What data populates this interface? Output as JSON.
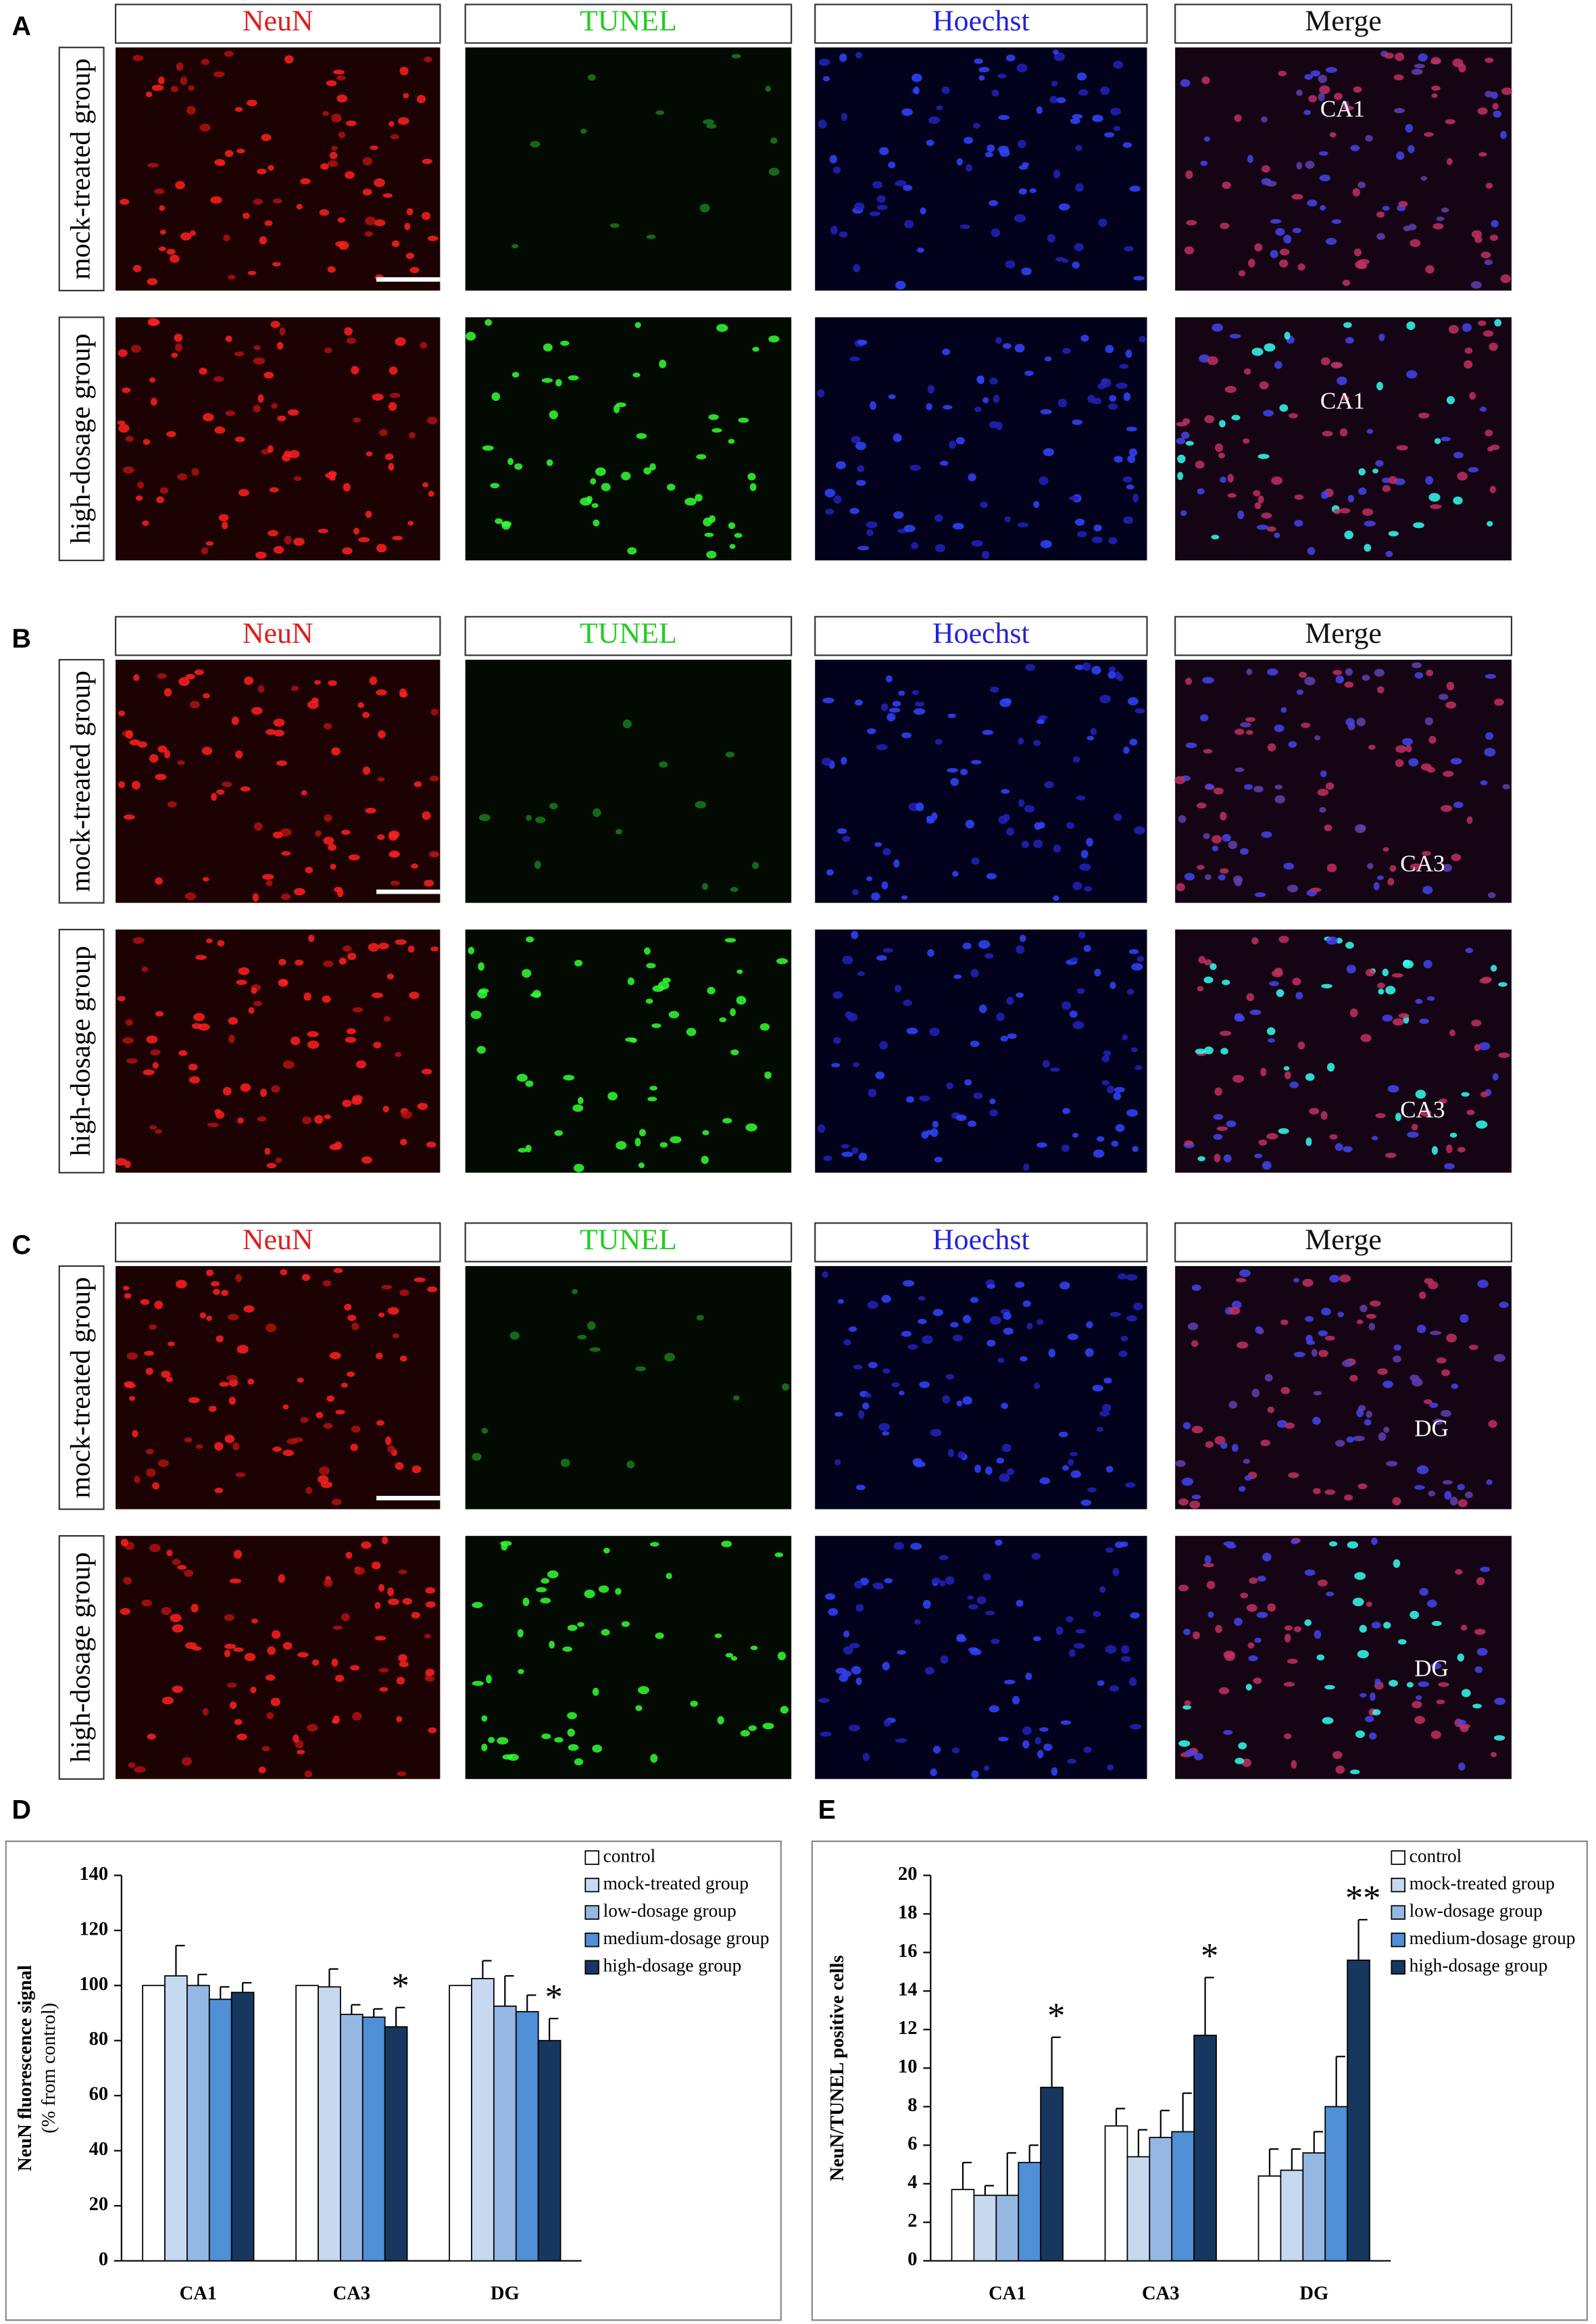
{
  "column_headers": [
    "NeuN",
    "TUNEL",
    "Hoechst",
    "Merge"
  ],
  "row_labels": [
    "mock-treated group",
    "high-dosage group"
  ],
  "panels": [
    {
      "letter": "A",
      "regions": [
        "CA1",
        "CA1"
      ]
    },
    {
      "letter": "B",
      "regions": [
        "CA3",
        "CA3"
      ]
    },
    {
      "letter": "C",
      "regions": [
        "DG",
        "DG"
      ]
    }
  ],
  "chart_data": [
    {
      "type": "bar",
      "panel": "D",
      "ylabel": "NeuN fluorescence signal",
      "ylabel_sub": "(% from control)",
      "categories": [
        "CA1",
        "CA3",
        "DG"
      ],
      "ylim": [
        0,
        140
      ],
      "yticks": [
        0,
        20,
        40,
        60,
        80,
        100,
        120,
        140
      ],
      "legend": "top-right",
      "series": [
        {
          "name": "control",
          "color": "#ffffff",
          "values": [
            100,
            100,
            100
          ],
          "errors": [
            0,
            0,
            0
          ]
        },
        {
          "name": "mock-treated group",
          "color": "#c6d9f1",
          "values": [
            103.5,
            99.5,
            102.5
          ],
          "errors": [
            11,
            6.5,
            6.5
          ]
        },
        {
          "name": "low-dosage group",
          "color": "#95b8e3",
          "values": [
            100,
            89.5,
            92.5
          ],
          "errors": [
            4,
            3.5,
            11
          ]
        },
        {
          "name": "medium-dosage group",
          "color": "#4f8fd6",
          "values": [
            95,
            88.5,
            90.5
          ],
          "errors": [
            4.5,
            3,
            6
          ]
        },
        {
          "name": "high-dosage group",
          "color": "#17375e",
          "values": [
            97.5,
            85,
            80
          ],
          "errors": [
            3.5,
            7,
            8
          ],
          "significance": [
            null,
            "*",
            "*"
          ]
        }
      ]
    },
    {
      "type": "bar",
      "panel": "E",
      "ylabel": "NeuN/TUNEL  positive cells",
      "categories": [
        "CA1",
        "CA3",
        "DG"
      ],
      "ylim": [
        0,
        20
      ],
      "yticks": [
        0,
        2,
        4,
        6,
        8,
        10,
        12,
        14,
        16,
        18,
        20
      ],
      "legend": "top-right",
      "series": [
        {
          "name": "control",
          "color": "#ffffff",
          "values": [
            3.7,
            7.0,
            4.4
          ],
          "errors": [
            1.4,
            0.9,
            1.4
          ]
        },
        {
          "name": "mock-treated group",
          "color": "#c6d9f1",
          "values": [
            3.4,
            5.4,
            4.7
          ],
          "errors": [
            0.5,
            1.4,
            1.1
          ]
        },
        {
          "name": "low-dosage group",
          "color": "#95b8e3",
          "values": [
            3.4,
            6.4,
            5.6
          ],
          "errors": [
            2.2,
            1.4,
            1.1
          ]
        },
        {
          "name": "medium-dosage group",
          "color": "#4f8fd6",
          "values": [
            5.1,
            6.7,
            8.0
          ],
          "errors": [
            0.9,
            2.0,
            2.6
          ]
        },
        {
          "name": "high-dosage group",
          "color": "#17375e",
          "values": [
            9.0,
            11.7,
            15.6
          ],
          "errors": [
            2.6,
            3.0,
            2.1
          ],
          "significance": [
            "*",
            "*",
            "**"
          ]
        }
      ]
    }
  ]
}
